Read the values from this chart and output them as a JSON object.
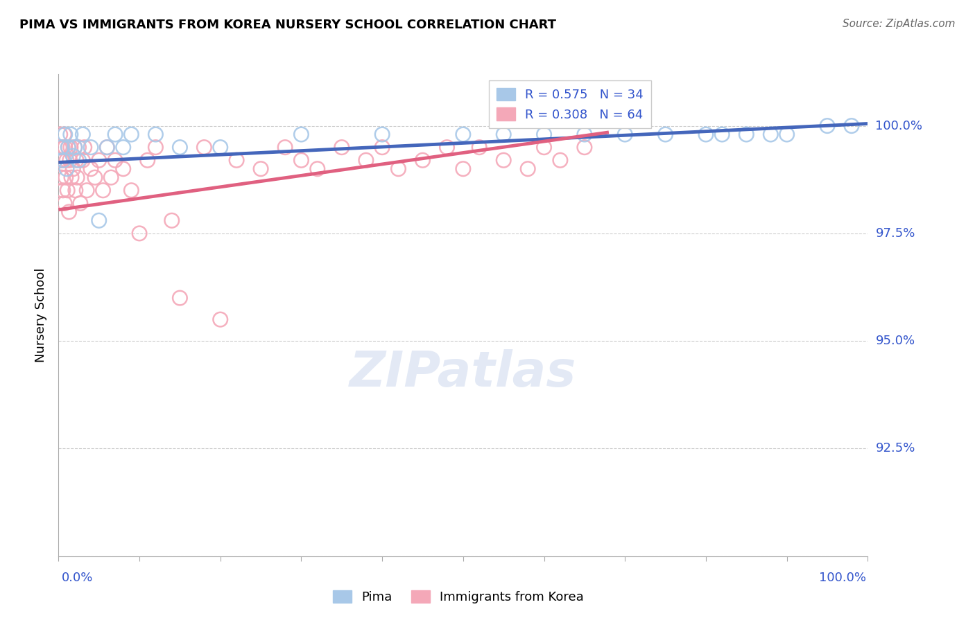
{
  "title": "PIMA VS IMMIGRANTS FROM KOREA NURSERY SCHOOL CORRELATION CHART",
  "source": "Source: ZipAtlas.com",
  "ylabel": "Nursery School",
  "xlim": [
    0.0,
    100.0
  ],
  "ylim": [
    90.0,
    101.2
  ],
  "yticks": [
    90.0,
    92.5,
    95.0,
    97.5,
    100.0
  ],
  "ytick_labels": [
    "",
    "92.5%",
    "95.0%",
    "97.5%",
    "100.0%"
  ],
  "background_color": "#ffffff",
  "pima_color": "#a8c8e8",
  "korea_color": "#f4a8b8",
  "pima_R": 0.575,
  "pima_N": 34,
  "korea_R": 0.308,
  "korea_N": 64,
  "pima_line_color": "#4466bb",
  "korea_line_color": "#e06080",
  "legend_R_color": "#3355cc",
  "pima_line_x0": 0.0,
  "pima_line_y0": 99.15,
  "pima_line_x1": 100.0,
  "pima_line_y1": 100.05,
  "korea_line_x0": 0.0,
  "korea_line_y0": 98.05,
  "korea_line_x1": 68.0,
  "korea_line_y1": 99.85,
  "pima_x": [
    0.4,
    0.6,
    0.8,
    1.0,
    1.2,
    1.5,
    1.8,
    2.0,
    2.5,
    3.0,
    4.0,
    5.0,
    6.0,
    7.0,
    8.0,
    9.0,
    12.0,
    15.0,
    20.0,
    30.0,
    40.0,
    50.0,
    55.0,
    60.0,
    65.0,
    70.0,
    75.0,
    80.0,
    82.0,
    85.0,
    88.0,
    90.0,
    95.0,
    98.0
  ],
  "pima_y": [
    99.5,
    99.2,
    99.8,
    99.0,
    99.5,
    99.8,
    99.3,
    99.5,
    99.2,
    99.8,
    99.5,
    97.8,
    99.5,
    99.8,
    99.5,
    99.8,
    99.8,
    99.5,
    99.5,
    99.8,
    99.8,
    99.8,
    99.8,
    99.8,
    99.8,
    99.8,
    99.8,
    99.8,
    99.8,
    99.8,
    99.8,
    99.8,
    100.0,
    100.0
  ],
  "korea_x": [
    0.1,
    0.15,
    0.2,
    0.3,
    0.35,
    0.4,
    0.5,
    0.55,
    0.6,
    0.7,
    0.75,
    0.8,
    0.9,
    1.0,
    1.1,
    1.2,
    1.3,
    1.4,
    1.5,
    1.6,
    1.8,
    2.0,
    2.1,
    2.2,
    2.3,
    2.5,
    2.7,
    3.0,
    3.2,
    3.5,
    4.0,
    4.5,
    5.0,
    5.5,
    6.0,
    6.5,
    7.0,
    8.0,
    9.0,
    10.0,
    11.0,
    12.0,
    14.0,
    15.0,
    18.0,
    20.0,
    22.0,
    25.0,
    28.0,
    30.0,
    32.0,
    35.0,
    38.0,
    40.0,
    42.0,
    45.0,
    48.0,
    50.0,
    52.0,
    55.0,
    58.0,
    60.0,
    62.0,
    65.0
  ],
  "korea_y": [
    99.5,
    99.2,
    99.8,
    99.5,
    98.8,
    99.2,
    99.5,
    98.5,
    99.2,
    99.8,
    98.2,
    99.5,
    98.8,
    99.2,
    98.5,
    99.5,
    98.0,
    99.2,
    99.5,
    98.8,
    99.0,
    99.5,
    98.5,
    99.2,
    98.8,
    99.5,
    98.2,
    99.2,
    99.5,
    98.5,
    99.0,
    98.8,
    99.2,
    98.5,
    99.5,
    98.8,
    99.2,
    99.0,
    98.5,
    97.5,
    99.2,
    99.5,
    97.8,
    96.0,
    99.5,
    95.5,
    99.2,
    99.0,
    99.5,
    99.2,
    99.0,
    99.5,
    99.2,
    99.5,
    99.0,
    99.2,
    99.5,
    99.0,
    99.5,
    99.2,
    99.0,
    99.5,
    99.2,
    99.5
  ]
}
